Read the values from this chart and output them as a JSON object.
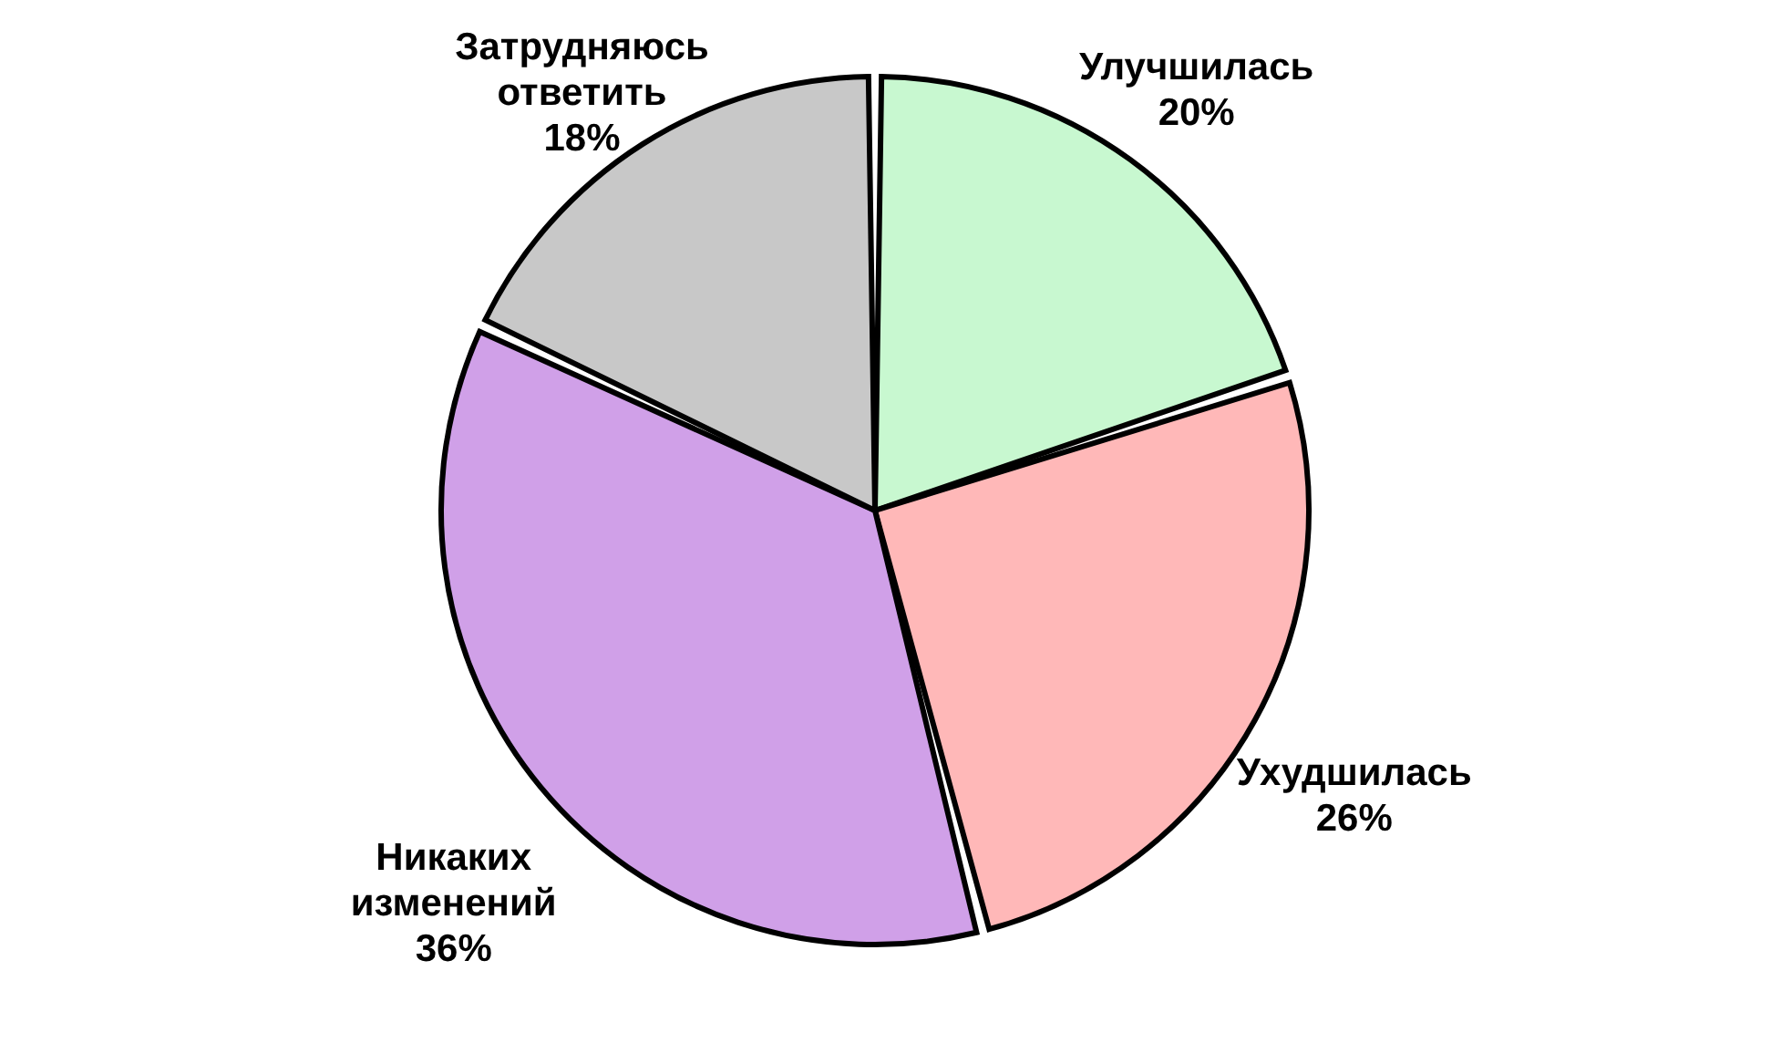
{
  "chart_data": {
    "type": "pie",
    "categories": [
      "Улучшилась",
      "Ухудшилась",
      "Никаких изменений",
      "Затрудняюсь ответить"
    ],
    "values": [
      20,
      26,
      36,
      18
    ],
    "value_labels": [
      "20%",
      "26%",
      "36%",
      "18%"
    ],
    "colors": [
      "#c8f8d0",
      "#ffb8b8",
      "#d0a0e8",
      "#c8c8c8"
    ]
  }
}
